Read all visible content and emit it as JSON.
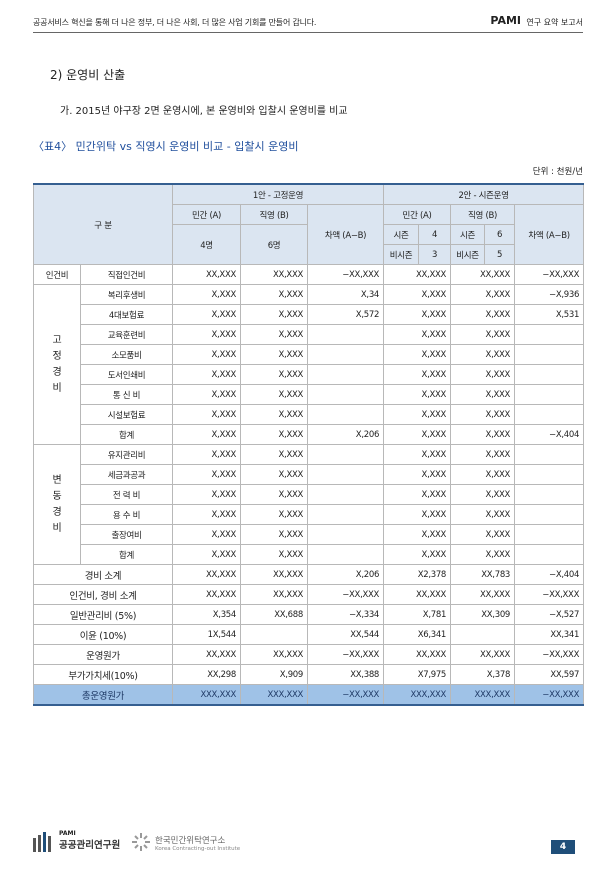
{
  "header": {
    "slogan": "공공서비스 혁신을 통해 더 나은 정부, 더 나은 사회, 더 많은 사업 기회를 만들어 갑니다.",
    "brand": "PAMI",
    "report": "연구 요약 보고서"
  },
  "section_title": "2) 운영비 산출",
  "paragraph": "가. 2015년 야구장 2면 운영시에, 본 운영비와 입찰시 운영비를 비교",
  "table": {
    "caption": "〈표4〉 민간위탁 vs 직영시 운영비 비교 - 입찰시 운영비",
    "unit": "단위 : 천원/년",
    "head": {
      "category": "구 분",
      "plan1": "1안 - 고정운영",
      "plan2": "2안 - 시즌운영",
      "private": "민간 (A)",
      "direct": "직영 (B)",
      "diff": "차액 (A−B)",
      "p1_private_staff": "4명",
      "p1_direct_staff": "6명",
      "season": "시즌",
      "off_season": "비시즌",
      "p2_private_season": 4,
      "p2_private_off": 3,
      "p2_direct_season": 6,
      "p2_direct_off": 5
    },
    "sections": [
      {
        "group": "인건비",
        "rows": [
          {
            "item": "직접인건비",
            "values": [
              "XX,XXX",
              "XX,XXX",
              "−XX,XXX",
              "XX,XXX",
              "XX,XXX",
              "−XX,XXX"
            ]
          }
        ]
      },
      {
        "group": "고정경비",
        "rows": [
          {
            "item": "복리후생비",
            "values": [
              "X,XXX",
              "X,XXX",
              "X,34",
              "X,XXX",
              "X,XXX",
              "−X,936"
            ]
          },
          {
            "item": "4대보험료",
            "values": [
              "X,XXX",
              "X,XXX",
              "X,572",
              "X,XXX",
              "X,XXX",
              "X,531"
            ]
          },
          {
            "item": "교육훈련비",
            "values": [
              "X,XXX",
              "X,XXX",
              null,
              "X,XXX",
              "X,XXX",
              null
            ]
          },
          {
            "item": "소모품비",
            "values": [
              "X,XXX",
              "X,XXX",
              null,
              "X,XXX",
              "X,XXX",
              null
            ]
          },
          {
            "item": "도서인쇄비",
            "values": [
              "X,XXX",
              "X,XXX",
              null,
              "X,XXX",
              "X,XXX",
              null
            ]
          },
          {
            "item": "통 신 비",
            "values": [
              "X,XXX",
              "X,XXX",
              null,
              "X,XXX",
              "X,XXX",
              null
            ]
          },
          {
            "item": "시설보험료",
            "values": [
              "X,XXX",
              "X,XXX",
              null,
              "X,XXX",
              "X,XXX",
              null
            ]
          },
          {
            "item": "합계",
            "values": [
              "X,XXX",
              "X,XXX",
              "X,206",
              "X,XXX",
              "X,XXX",
              "−X,404"
            ]
          }
        ]
      },
      {
        "group": "변동경비",
        "rows": [
          {
            "item": "유지관리비",
            "values": [
              "X,XXX",
              "X,XXX",
              null,
              "X,XXX",
              "X,XXX",
              null
            ]
          },
          {
            "item": "세금과공과",
            "values": [
              "X,XXX",
              "X,XXX",
              null,
              "X,XXX",
              "X,XXX",
              null
            ]
          },
          {
            "item": "전 력 비",
            "values": [
              "X,XXX",
              "X,XXX",
              null,
              "X,XXX",
              "X,XXX",
              null
            ]
          },
          {
            "item": "용 수 비",
            "values": [
              "X,XXX",
              "X,XXX",
              null,
              "X,XXX",
              "X,XXX",
              null
            ]
          },
          {
            "item": "출장여비",
            "values": [
              "X,XXX",
              "X,XXX",
              null,
              "X,XXX",
              "X,XXX",
              null
            ]
          },
          {
            "item": "합계",
            "values": [
              "X,XXX",
              "X,XXX",
              null,
              "X,XXX",
              "X,XXX",
              null
            ]
          }
        ]
      }
    ],
    "summary": [
      {
        "label": "경비 소계",
        "values": [
          "XX,XXX",
          "XX,XXX",
          "X,206",
          "X2,378",
          "XX,783",
          "−X,404"
        ]
      },
      {
        "label": "인건비, 경비 소계",
        "values": [
          "XX,XXX",
          "XX,XXX",
          "−XX,XXX",
          "XX,XXX",
          "XX,XXX",
          "−XX,XXX"
        ]
      },
      {
        "label": "일반관리비 (5%)",
        "values": [
          "X,354",
          "XX,688",
          "−X,334",
          "X,781",
          "XX,309",
          "−X,527"
        ]
      },
      {
        "label": "이윤 (10%)",
        "values": [
          "1X,544",
          null,
          "XX,544",
          "X6,341",
          null,
          "XX,341"
        ]
      },
      {
        "label": "운영원가",
        "values": [
          "XX,XXX",
          "XX,XXX",
          "−XX,XXX",
          "XX,XXX",
          "XX,XXX",
          "−XX,XXX"
        ]
      },
      {
        "label": "부가가치세(10%)",
        "values": [
          "XX,298",
          "X,909",
          "XX,388",
          "X7,975",
          "X,378",
          "XX,597"
        ]
      },
      {
        "label": "총운영원가",
        "values": [
          "XXX,XXX",
          "XXX,XXX",
          "−XX,XXX",
          "XXX,XXX",
          "XXX,XXX",
          "−XX,XXX"
        ]
      }
    ]
  },
  "footer": {
    "org1_small": "PAMI",
    "org1": "공공관리연구원",
    "org2": "한국민간위탁연구소",
    "org2_en": "Korea Contracting-out Institute",
    "page": "4"
  }
}
